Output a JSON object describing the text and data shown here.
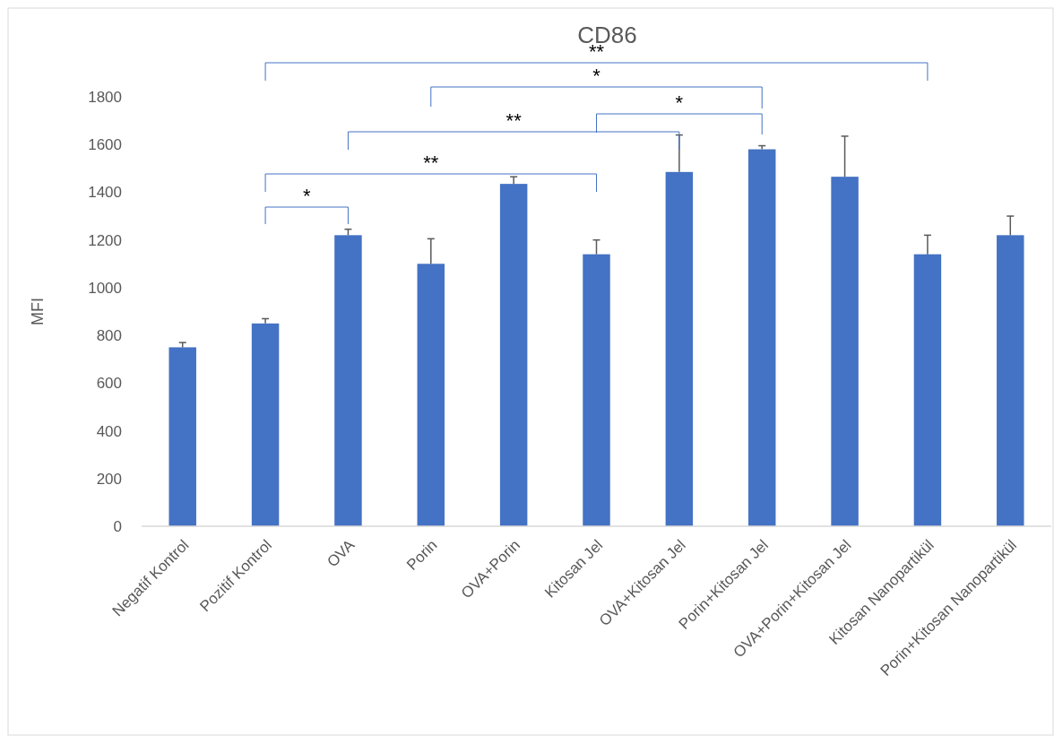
{
  "chart_data": {
    "type": "bar",
    "title": "CD86",
    "ylabel": "MFI",
    "categories": [
      "Negatif Kontrol",
      "Pozitif Kontrol",
      "OVA",
      "Porin",
      "OVA+Porin",
      "Kitosan Jel",
      "OVA+Kitosan Jel",
      "Porin+Kitosan Jel",
      "OVA+Porin+Kitosan Jel",
      "Kitosan Nanopartikül",
      "Porin+Kitosan Nanopartikül"
    ],
    "values": [
      750,
      850,
      1220,
      1100,
      1435,
      1140,
      1485,
      1580,
      1465,
      1140,
      1220
    ],
    "errors": [
      [
        750,
        770
      ],
      [
        850,
        870
      ],
      [
        1220,
        1245
      ],
      [
        1100,
        1205
      ],
      [
        1435,
        1465
      ],
      [
        1140,
        1200
      ],
      [
        1485,
        1640
      ],
      [
        1580,
        1595
      ],
      [
        1465,
        1635
      ],
      [
        1140,
        1220
      ],
      [
        1220,
        1300
      ]
    ],
    "color": "#4472c4",
    "ylim": [
      0,
      1800
    ],
    "yticks": [
      0,
      200,
      400,
      600,
      800,
      1000,
      1200,
      1400,
      1600,
      1800
    ],
    "grid": false,
    "annotations": [
      "**",
      "*",
      "*",
      "**",
      "**",
      "*"
    ]
  }
}
